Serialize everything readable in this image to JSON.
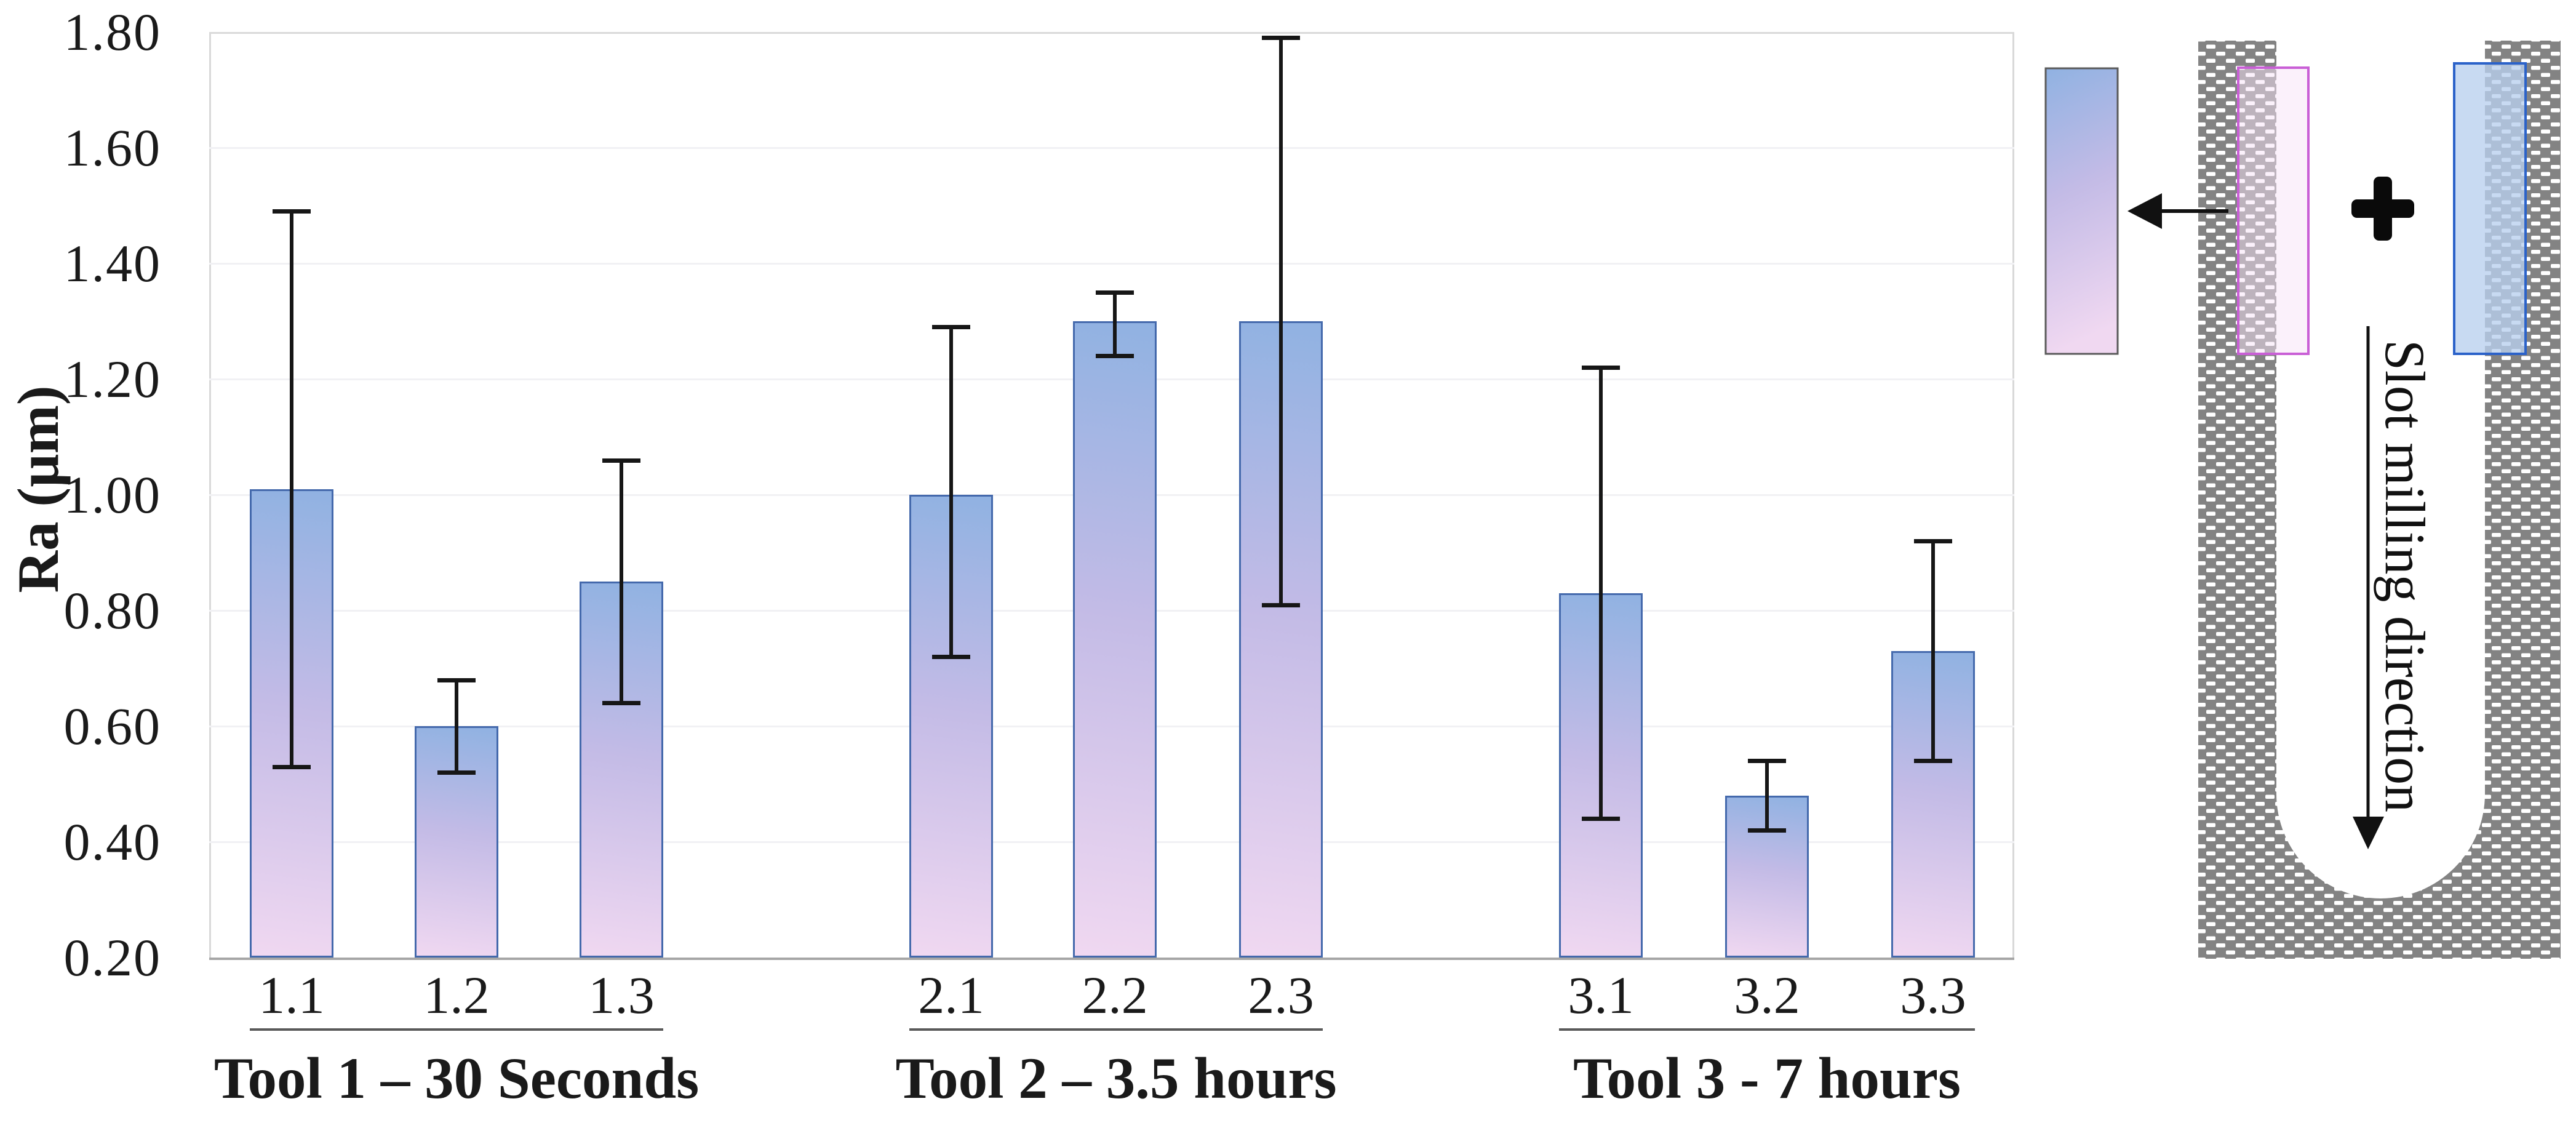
{
  "chart_data": {
    "type": "bar",
    "title": "",
    "xlabel": "",
    "ylabel": "Ra (µm)",
    "ylim": [
      0.2,
      1.8
    ],
    "ytick_step": 0.2,
    "yticks": [
      "1.80",
      "1.60",
      "1.40",
      "1.20",
      "1.00",
      "0.80",
      "0.60",
      "0.40",
      "0.20"
    ],
    "grid": true,
    "legend": "none",
    "error_bars": true,
    "groups": [
      {
        "label": "Tool 1 – 30 Seconds",
        "bars": [
          {
            "category": "1.1",
            "value": 1.01,
            "err_low": 0.53,
            "err_high": 1.49
          },
          {
            "category": "1.2",
            "value": 0.6,
            "err_low": 0.52,
            "err_high": 0.68
          },
          {
            "category": "1.3",
            "value": 0.85,
            "err_low": 0.64,
            "err_high": 1.06
          }
        ]
      },
      {
        "label": "Tool 2 – 3.5 hours",
        "bars": [
          {
            "category": "2.1",
            "value": 1.0,
            "err_low": 0.72,
            "err_high": 1.29
          },
          {
            "category": "2.2",
            "value": 1.3,
            "err_low": 1.24,
            "err_high": 1.35
          },
          {
            "category": "2.3",
            "value": 1.3,
            "err_low": 0.81,
            "err_high": 1.79
          }
        ]
      },
      {
        "label": "Tool 3 - 7 hours",
        "bars": [
          {
            "category": "3.1",
            "value": 0.83,
            "err_low": 0.44,
            "err_high": 1.22
          },
          {
            "category": "3.2",
            "value": 0.48,
            "err_low": 0.42,
            "err_high": 0.54
          },
          {
            "category": "3.3",
            "value": 0.73,
            "err_low": 0.54,
            "err_high": 0.92
          }
        ]
      }
    ],
    "colors": {
      "bar_gradient_top": "#90b2e2",
      "bar_gradient_mid": "#c3bbe6",
      "bar_gradient_bottom": "#f0d8f1",
      "bar_border": "#4469ac",
      "error_bar": "#161616",
      "gridline": "#f1f1f4",
      "axis_line": "#a6a6a6",
      "plot_border": "#d9d9d9"
    }
  },
  "diagram": {
    "slot_label": "Slot milling direction",
    "icons": [
      "left-arrow-icon",
      "plus-icon",
      "down-arrow-icon"
    ],
    "colors": {
      "workpiece_gray": "#838383",
      "tool_mark_pink_border": "#c95fd6",
      "tool_mark_blue_border": "#2b62c9",
      "result_bar_border": "#5a5a5a"
    }
  }
}
